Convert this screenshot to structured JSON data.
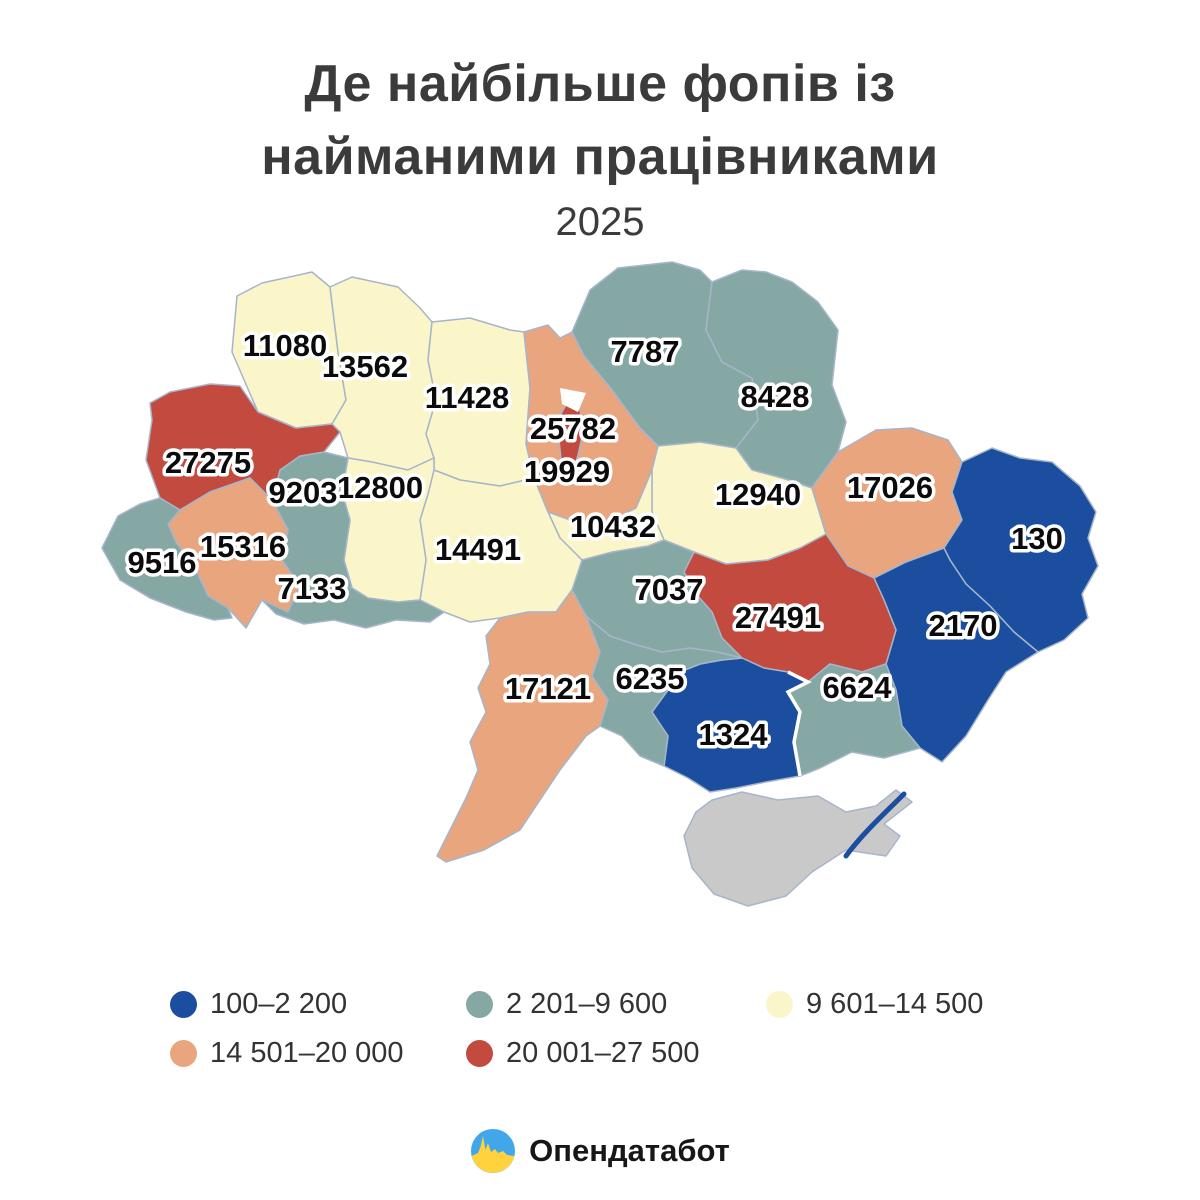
{
  "title": {
    "line1": "Де найбільше фопів із",
    "line2": "найманими працівниками",
    "subtitle": "2025"
  },
  "legend": {
    "items": [
      {
        "label": "100–2 200",
        "color": "#1b4e9e"
      },
      {
        "label": "2 201–9 600",
        "color": "#85a8a5"
      },
      {
        "label": "9 601–14 500",
        "color": "#fbf6c9"
      },
      {
        "label": "14 501–20 000",
        "color": "#e8a57e"
      },
      {
        "label": "20 001–27 500",
        "color": "#c34a3f"
      }
    ],
    "no_data_color": "#c9c9c9"
  },
  "footer": {
    "brand": "Опендатабот"
  },
  "chart_data": {
    "type": "heatmap",
    "subtype": "choropleth-map-ukraine-oblasts",
    "title": "Де найбільше фопів із найманими працівниками",
    "year_label": "2025",
    "legend_position": "bottom",
    "buckets": [
      "100–2 200",
      "2 201–9 600",
      "9 601–14 500",
      "14 501–20 000",
      "20 001–27 500"
    ],
    "regions": [
      {
        "id": "crimea",
        "value": null,
        "bucket": null
      },
      {
        "id": "volyn",
        "value": 11080,
        "bucket": 2
      },
      {
        "id": "rivne",
        "value": 13562,
        "bucket": 2
      },
      {
        "id": "zhytomyr",
        "value": 11428,
        "bucket": 2
      },
      {
        "id": "chernihiv",
        "value": 7787,
        "bucket": 1
      },
      {
        "id": "sumy",
        "value": 8428,
        "bucket": 1
      },
      {
        "id": "kyiv-oblast",
        "value": 19929,
        "bucket": 3
      },
      {
        "id": "poltava",
        "value": 12940,
        "bucket": 2
      },
      {
        "id": "kharkiv",
        "value": 17026,
        "bucket": 3
      },
      {
        "id": "luhansk",
        "value": 130,
        "bucket": 0
      },
      {
        "id": "donetsk",
        "value": 2170,
        "bucket": 0
      },
      {
        "id": "dnipropetrovsk",
        "value": 27491,
        "bucket": 4
      },
      {
        "id": "zaporizhzhia",
        "value": 6624,
        "bucket": 1
      },
      {
        "id": "kherson",
        "value": 1324,
        "bucket": 0
      },
      {
        "id": "mykolaiv",
        "value": 6235,
        "bucket": 1
      },
      {
        "id": "kirovohrad",
        "value": 7037,
        "bucket": 1
      },
      {
        "id": "cherkasy",
        "value": 10432,
        "bucket": 2
      },
      {
        "id": "vinnytsia",
        "value": 14491,
        "bucket": 2
      },
      {
        "id": "odesa",
        "value": 17121,
        "bucket": 3
      },
      {
        "id": "khmelnytskyi",
        "value": 12800,
        "bucket": 2
      },
      {
        "id": "ternopil",
        "value": 9203,
        "bucket": 1
      },
      {
        "id": "lviv",
        "value": 27275,
        "bucket": 4
      },
      {
        "id": "ivano-frankivsk",
        "value": 15316,
        "bucket": 3
      },
      {
        "id": "zakarpattia",
        "value": 9516,
        "bucket": 1
      },
      {
        "id": "chernivtsi",
        "value": 7133,
        "bucket": 1
      },
      {
        "id": "kyiv-city",
        "value": 25782,
        "bucket": 4
      }
    ]
  }
}
